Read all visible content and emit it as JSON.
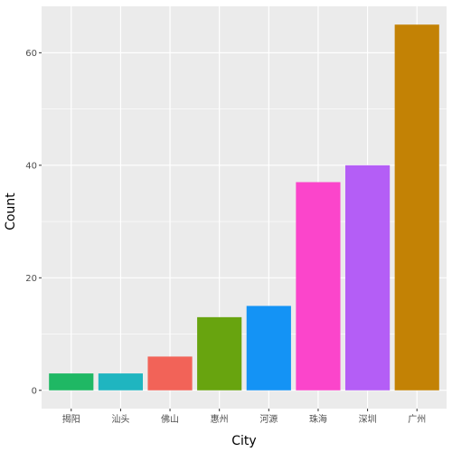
{
  "chart_data": {
    "type": "bar",
    "categories": [
      "揭阳",
      "汕头",
      "佛山",
      "惠州",
      "河源",
      "珠海",
      "深圳",
      "广州"
    ],
    "values": [
      3,
      3,
      6,
      13,
      15,
      37,
      40,
      65
    ],
    "colors": [
      "#1fb864",
      "#1fb5c0",
      "#f26358",
      "#68a40f",
      "#1493f5",
      "#fb45cb",
      "#b45ef6",
      "#c38205"
    ],
    "title": "",
    "xlabel": "City",
    "ylabel": "Count",
    "ylim": [
      -3.25,
      68.25
    ],
    "yticks": [
      0,
      20,
      40,
      60
    ],
    "ytick_labels": [
      "0",
      "20",
      "40",
      "60"
    ],
    "grid": true,
    "panel_background": "#ebebeb",
    "grid_color": "#ffffff"
  }
}
